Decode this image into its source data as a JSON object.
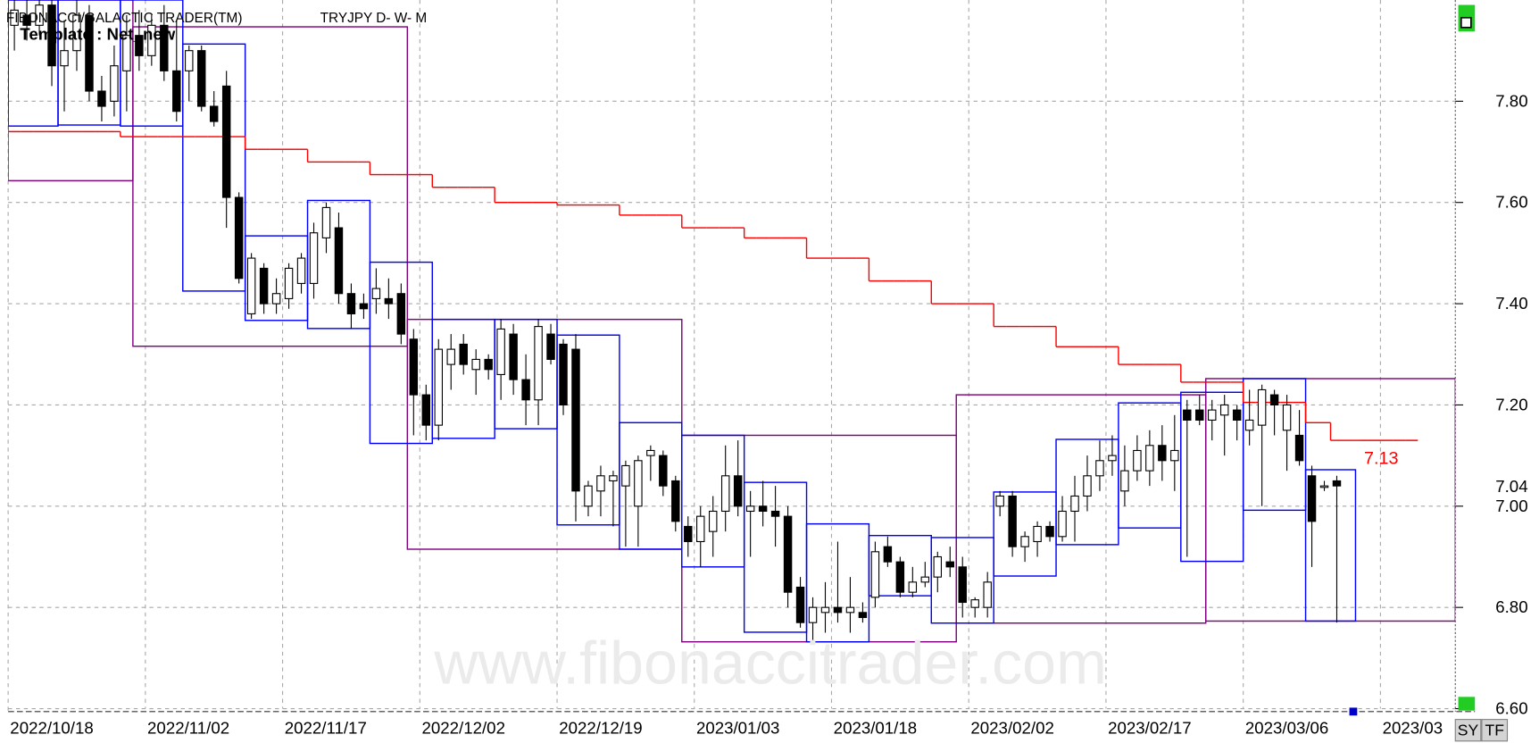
{
  "chart_data": {
    "type": "candlestick",
    "title": "FIBONACCI/GALACTIC TRADER(TM)",
    "subtitle": "TRYJPY D- W- M",
    "template": "Template : Net_new",
    "watermark": "www.fibonaccitrader.com",
    "buttons": [
      "SY",
      "TF"
    ],
    "last_price_label": "7.04",
    "trend_label": "7.13",
    "up_color": "#ffffff",
    "down_color": "#000000",
    "trend_color": "#ff0000",
    "grid": true,
    "ylim": [
      6.6,
      8.0
    ],
    "yticks": [
      {
        "value": 6.6,
        "label": "6.60"
      },
      {
        "value": 6.8,
        "label": "6.80"
      },
      {
        "value": 7.0,
        "label": "7.00"
      },
      {
        "value": 7.2,
        "label": "7.20"
      },
      {
        "value": 7.4,
        "label": "7.40"
      },
      {
        "value": 7.6,
        "label": "7.60"
      },
      {
        "value": 7.8,
        "label": "7.80"
      }
    ],
    "categories": [
      "2022/10/18",
      null,
      null,
      null,
      null,
      null,
      null,
      null,
      null,
      null,
      null,
      "2022/11/02",
      null,
      null,
      null,
      null,
      null,
      null,
      null,
      null,
      null,
      null,
      "2022/11/17",
      null,
      null,
      null,
      null,
      null,
      null,
      null,
      null,
      null,
      null,
      "2022/12/02",
      null,
      null,
      null,
      null,
      null,
      null,
      null,
      null,
      null,
      null,
      "2022/12/19",
      null,
      null,
      null,
      null,
      null,
      null,
      null,
      null,
      null,
      null,
      "2023/01/03",
      null,
      null,
      null,
      null,
      null,
      null,
      null,
      null,
      null,
      null,
      "2023/01/18",
      null,
      null,
      null,
      null,
      null,
      null,
      null,
      null,
      null,
      null,
      "2023/02/02",
      null,
      null,
      null,
      null,
      null,
      null,
      null,
      null,
      null,
      null,
      "2023/02/17",
      null,
      null,
      null,
      null,
      null,
      null,
      null,
      null,
      null,
      null,
      "2023/03/06",
      null,
      null,
      null,
      null,
      null,
      null,
      null,
      null,
      null,
      null,
      "2023/03",
      null,
      null,
      null,
      null,
      null
    ],
    "ohlc": [
      [
        7.95,
        8.0,
        7.9,
        7.98
      ],
      [
        7.97,
        8.0,
        7.92,
        7.95
      ],
      [
        7.95,
        8.0,
        7.93,
        7.99
      ],
      [
        7.99,
        8.0,
        7.83,
        7.87
      ],
      [
        7.87,
        7.96,
        7.78,
        7.9
      ],
      [
        7.9,
        8.0,
        7.86,
        7.97
      ],
      [
        7.97,
        7.99,
        7.8,
        7.82
      ],
      [
        7.82,
        7.85,
        7.76,
        7.79
      ],
      [
        7.8,
        7.91,
        7.77,
        7.87
      ],
      [
        7.86,
        7.97,
        7.78,
        7.93
      ],
      [
        7.93,
        7.98,
        7.86,
        7.89
      ],
      [
        7.89,
        7.97,
        7.87,
        7.95
      ],
      [
        7.95,
        7.99,
        7.84,
        7.86
      ],
      [
        7.86,
        7.96,
        7.76,
        7.78
      ],
      [
        7.86,
        7.91,
        7.8,
        7.9
      ],
      [
        7.9,
        7.91,
        7.78,
        7.79
      ],
      [
        7.79,
        7.82,
        7.75,
        7.76
      ],
      [
        7.83,
        7.86,
        7.55,
        7.61
      ],
      [
        7.61,
        7.62,
        7.44,
        7.45
      ],
      [
        7.38,
        7.5,
        7.37,
        7.49
      ],
      [
        7.47,
        7.48,
        7.38,
        7.4
      ],
      [
        7.4,
        7.45,
        7.38,
        7.42
      ],
      [
        7.41,
        7.48,
        7.39,
        7.47
      ],
      [
        7.44,
        7.5,
        7.42,
        7.49
      ],
      [
        7.44,
        7.56,
        7.41,
        7.54
      ],
      [
        7.53,
        7.6,
        7.5,
        7.59
      ],
      [
        7.55,
        7.58,
        7.4,
        7.42
      ],
      [
        7.42,
        7.44,
        7.35,
        7.38
      ],
      [
        7.4,
        7.42,
        7.37,
        7.39
      ],
      [
        7.41,
        7.47,
        7.38,
        7.43
      ],
      [
        7.41,
        7.45,
        7.37,
        7.4
      ],
      [
        7.42,
        7.44,
        7.32,
        7.34
      ],
      [
        7.33,
        7.35,
        7.14,
        7.22
      ],
      [
        7.22,
        7.24,
        7.13,
        7.16
      ],
      [
        7.16,
        7.33,
        7.13,
        7.31
      ],
      [
        7.28,
        7.34,
        7.23,
        7.31
      ],
      [
        7.32,
        7.34,
        7.26,
        7.28
      ],
      [
        7.27,
        7.31,
        7.22,
        7.29
      ],
      [
        7.29,
        7.3,
        7.25,
        7.27
      ],
      [
        7.26,
        7.37,
        7.21,
        7.35
      ],
      [
        7.34,
        7.36,
        7.22,
        7.25
      ],
      [
        7.25,
        7.3,
        7.16,
        7.21
      ],
      [
        7.21,
        7.37,
        7.16,
        7.355
      ],
      [
        7.34,
        7.36,
        7.28,
        7.29
      ],
      [
        7.32,
        7.33,
        7.18,
        7.2
      ],
      [
        7.31,
        7.34,
        6.97,
        7.03
      ],
      [
        7.0,
        7.05,
        6.98,
        7.04
      ],
      [
        7.03,
        7.08,
        6.98,
        7.06
      ],
      [
        7.05,
        7.07,
        6.96,
        7.06
      ],
      [
        7.04,
        7.09,
        6.92,
        7.08
      ],
      [
        7.0,
        7.1,
        6.92,
        7.09
      ],
      [
        7.1,
        7.12,
        7.05,
        7.11
      ],
      [
        7.1,
        7.11,
        7.02,
        7.04
      ],
      [
        7.05,
        7.06,
        6.95,
        6.97
      ],
      [
        6.96,
        6.98,
        6.9,
        6.93
      ],
      [
        6.93,
        7.0,
        6.88,
        6.98
      ],
      [
        6.95,
        7.02,
        6.9,
        6.99
      ],
      [
        6.99,
        7.12,
        6.95,
        7.06
      ],
      [
        7.06,
        7.13,
        6.98,
        7.0
      ],
      [
        6.99,
        7.03,
        6.9,
        7.0
      ],
      [
        7.0,
        7.05,
        6.96,
        6.99
      ],
      [
        6.99,
        7.04,
        6.92,
        6.98
      ],
      [
        6.98,
        7.0,
        6.8,
        6.83
      ],
      [
        6.84,
        6.86,
        6.76,
        6.77
      ],
      [
        6.77,
        6.82,
        6.73,
        6.8
      ],
      [
        6.79,
        6.85,
        6.75,
        6.8
      ],
      [
        6.8,
        6.93,
        6.77,
        6.79
      ],
      [
        6.79,
        6.86,
        6.75,
        6.8
      ],
      [
        6.79,
        6.81,
        6.77,
        6.78
      ],
      [
        6.82,
        6.93,
        6.8,
        6.91
      ],
      [
        6.92,
        6.94,
        6.88,
        6.89
      ],
      [
        6.89,
        6.9,
        6.82,
        6.83
      ],
      [
        6.83,
        6.88,
        6.82,
        6.85
      ],
      [
        6.85,
        6.89,
        6.84,
        6.86
      ],
      [
        6.86,
        6.91,
        6.83,
        6.9
      ],
      [
        6.89,
        6.92,
        6.86,
        6.88
      ],
      [
        6.88,
        6.9,
        6.78,
        6.81
      ],
      [
        6.8,
        6.82,
        6.78,
        6.815
      ],
      [
        6.8,
        6.87,
        6.78,
        6.85
      ],
      [
        7.0,
        7.03,
        6.98,
        7.02
      ],
      [
        7.02,
        7.03,
        6.9,
        6.92
      ],
      [
        6.92,
        6.95,
        6.89,
        6.94
      ],
      [
        6.93,
        6.97,
        6.9,
        6.96
      ],
      [
        6.96,
        6.97,
        6.93,
        6.94
      ],
      [
        6.94,
        7.02,
        6.93,
        6.99
      ],
      [
        6.99,
        7.06,
        6.93,
        7.02
      ],
      [
        7.02,
        7.1,
        6.99,
        7.06
      ],
      [
        7.06,
        7.13,
        7.03,
        7.09
      ],
      [
        7.09,
        7.14,
        7.06,
        7.1
      ],
      [
        7.03,
        7.12,
        7.0,
        7.07
      ],
      [
        7.07,
        7.14,
        7.05,
        7.11
      ],
      [
        7.07,
        7.15,
        7.04,
        7.12
      ],
      [
        7.12,
        7.16,
        7.05,
        7.09
      ],
      [
        7.09,
        7.18,
        7.03,
        7.11
      ],
      [
        7.19,
        7.21,
        6.9,
        7.17
      ],
      [
        7.19,
        7.22,
        7.16,
        7.17
      ],
      [
        7.17,
        7.21,
        7.13,
        7.19
      ],
      [
        7.18,
        7.22,
        7.1,
        7.2
      ],
      [
        7.19,
        7.2,
        7.13,
        7.17
      ],
      [
        7.15,
        7.23,
        7.12,
        7.17
      ],
      [
        7.16,
        7.24,
        7.0,
        7.23
      ],
      [
        7.22,
        7.23,
        7.14,
        7.2
      ],
      [
        7.15,
        7.22,
        7.07,
        7.2
      ],
      [
        7.14,
        7.19,
        7.08,
        7.09
      ],
      [
        7.06,
        7.08,
        6.88,
        6.97
      ],
      [
        7.04,
        7.05,
        7.03,
        7.04
      ],
      [
        7.05,
        7.06,
        6.77,
        7.04
      ],
      null,
      null,
      null,
      null,
      null,
      null,
      null,
      null,
      null
    ],
    "trend": [
      7.74,
      7.74,
      7.74,
      7.74,
      7.74,
      7.74,
      7.74,
      7.74,
      7.74,
      7.73,
      7.73,
      7.73,
      7.73,
      7.73,
      7.73,
      7.73,
      7.73,
      7.73,
      7.73,
      7.705,
      7.705,
      7.705,
      7.705,
      7.705,
      7.68,
      7.68,
      7.68,
      7.68,
      7.68,
      7.655,
      7.655,
      7.655,
      7.655,
      7.655,
      7.63,
      7.63,
      7.63,
      7.63,
      7.63,
      7.6,
      7.6,
      7.6,
      7.6,
      7.6,
      7.595,
      7.595,
      7.595,
      7.595,
      7.595,
      7.575,
      7.575,
      7.575,
      7.575,
      7.575,
      7.55,
      7.55,
      7.55,
      7.55,
      7.55,
      7.53,
      7.53,
      7.53,
      7.53,
      7.53,
      7.49,
      7.49,
      7.49,
      7.49,
      7.49,
      7.445,
      7.445,
      7.445,
      7.445,
      7.445,
      7.4,
      7.4,
      7.4,
      7.4,
      7.4,
      7.355,
      7.355,
      7.355,
      7.355,
      7.355,
      7.315,
      7.315,
      7.315,
      7.315,
      7.315,
      7.28,
      7.28,
      7.28,
      7.28,
      7.28,
      7.245,
      7.245,
      7.245,
      7.245,
      7.245,
      7.205,
      7.205,
      7.205,
      7.205,
      7.205,
      7.165,
      7.165,
      7.13,
      7.13,
      7.13,
      7.13,
      7.13,
      7.13,
      7.13,
      null,
      null,
      null
    ],
    "boxes": [
      {
        "start": 0,
        "end": 9,
        "high": 8.0,
        "low": 7.643,
        "color": "#800080"
      },
      {
        "start": 10,
        "end": 31,
        "high": 7.947,
        "low": 7.316,
        "color": "#800080"
      },
      {
        "start": 32,
        "end": 53,
        "high": 7.369,
        "low": 6.915,
        "color": "#800080"
      },
      {
        "start": 54,
        "end": 75,
        "high": 7.14,
        "low": 6.732,
        "color": "#800080"
      },
      {
        "start": 76,
        "end": 95,
        "high": 7.22,
        "low": 6.769,
        "color": "#800080"
      },
      {
        "start": 96,
        "end": 115,
        "high": 7.252,
        "low": 6.773,
        "color": "#800080"
      },
      {
        "start": 0,
        "end": 3,
        "high": 8.0,
        "low": 7.751,
        "color": "#0000ff"
      },
      {
        "start": 4,
        "end": 8,
        "high": 8.0,
        "low": 7.753,
        "color": "#0000ff"
      },
      {
        "start": 9,
        "end": 13,
        "high": 8.0,
        "low": 7.751,
        "color": "#0000ff"
      },
      {
        "start": 14,
        "end": 18,
        "high": 7.913,
        "low": 7.425,
        "color": "#0000ff"
      },
      {
        "start": 19,
        "end": 23,
        "high": 7.534,
        "low": 7.367,
        "color": "#0000ff"
      },
      {
        "start": 24,
        "end": 28,
        "high": 7.604,
        "low": 7.351,
        "color": "#0000ff"
      },
      {
        "start": 29,
        "end": 33,
        "high": 7.482,
        "low": 7.124,
        "color": "#0000ff"
      },
      {
        "start": 34,
        "end": 38,
        "high": 7.369,
        "low": 7.134,
        "color": "#0000ff"
      },
      {
        "start": 39,
        "end": 43,
        "high": 7.369,
        "low": 7.153,
        "color": "#0000ff"
      },
      {
        "start": 44,
        "end": 48,
        "high": 7.338,
        "low": 6.963,
        "color": "#0000ff"
      },
      {
        "start": 49,
        "end": 53,
        "high": 7.165,
        "low": 6.915,
        "color": "#0000ff"
      },
      {
        "start": 54,
        "end": 58,
        "high": 7.14,
        "low": 6.88,
        "color": "#0000ff"
      },
      {
        "start": 59,
        "end": 63,
        "high": 7.047,
        "low": 6.751,
        "color": "#0000ff"
      },
      {
        "start": 64,
        "end": 68,
        "high": 6.965,
        "low": 6.732,
        "color": "#0000ff"
      },
      {
        "start": 69,
        "end": 73,
        "high": 6.942,
        "low": 6.823,
        "color": "#0000ff"
      },
      {
        "start": 74,
        "end": 78,
        "high": 6.938,
        "low": 6.769,
        "color": "#0000ff"
      },
      {
        "start": 79,
        "end": 83,
        "high": 7.028,
        "low": 6.862,
        "color": "#0000ff"
      },
      {
        "start": 84,
        "end": 88,
        "high": 7.132,
        "low": 6.924,
        "color": "#0000ff"
      },
      {
        "start": 89,
        "end": 93,
        "high": 7.204,
        "low": 6.957,
        "color": "#0000ff"
      },
      {
        "start": 94,
        "end": 98,
        "high": 7.225,
        "low": 6.891,
        "color": "#0000ff"
      },
      {
        "start": 99,
        "end": 103,
        "high": 7.252,
        "low": 6.992,
        "color": "#0000ff"
      },
      {
        "start": 104,
        "end": 107,
        "high": 7.072,
        "low": 6.773,
        "color": "#0000ff"
      }
    ]
  }
}
